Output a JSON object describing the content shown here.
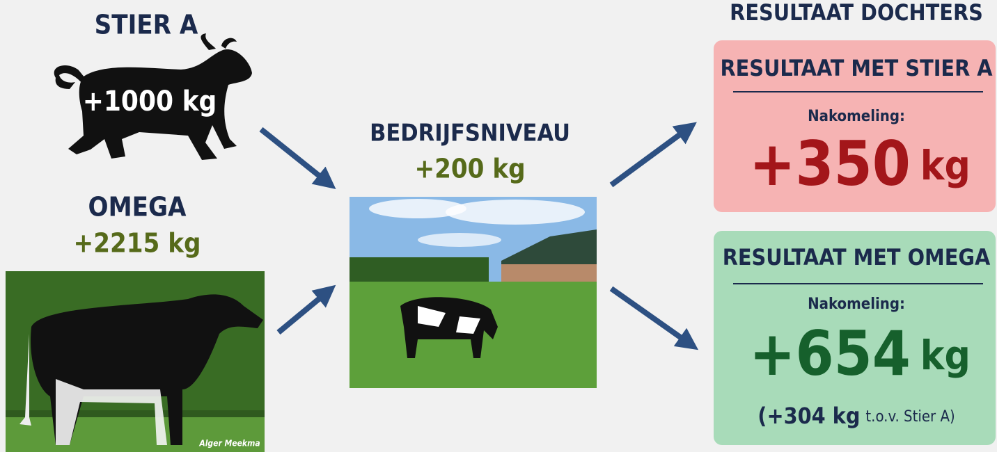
{
  "stier_a": {
    "title": "STIER A",
    "value": "+1000 kg"
  },
  "omega": {
    "title": "OMEGA",
    "value": "+2215 kg",
    "photo_credit": "Alger Meekma"
  },
  "bedrijfsniveau": {
    "title": "BEDRIJFSNIVEAU",
    "value": "+200 kg"
  },
  "results": {
    "title": "RESULTAAT DOCHTERS",
    "boxes": [
      {
        "title": "RESULTAAT MET STIER A",
        "label": "Nakomeling:",
        "number": "+350",
        "unit": "kg"
      },
      {
        "title": "RESULTAAT MET OMEGA",
        "label": "Nakomeling:",
        "number": "+654",
        "unit": "kg",
        "note": "(+304 kg",
        "note_suffix": "t.o.v. Stier A)"
      }
    ]
  }
}
